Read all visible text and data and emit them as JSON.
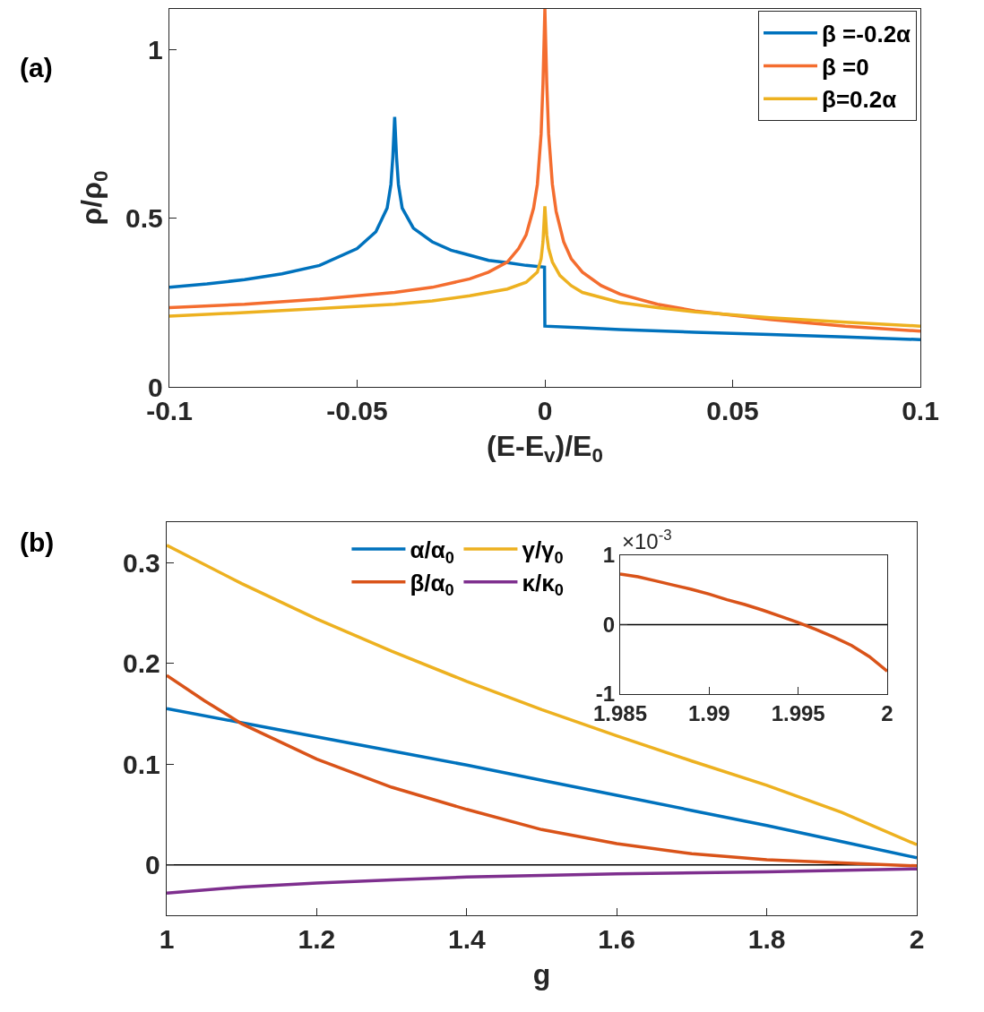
{
  "chart_data": [
    {
      "type": "line",
      "title": "(a)",
      "xlabel": "(E-E$_{v}$)/E$_{0}$",
      "ylabel": "ρ/ρ$_{0}$",
      "xlim": [
        -0.1,
        0.1
      ],
      "xticks": [
        -0.1,
        -0.05,
        0,
        0.05,
        0.1
      ],
      "ylim": [
        0,
        1.12
      ],
      "yticks": [
        0,
        0.5,
        1
      ],
      "legend": "top right",
      "series": [
        {
          "name": "β =-0.2α",
          "color": "#0072bd",
          "x": [
            -0.1,
            -0.09,
            -0.08,
            -0.07,
            -0.06,
            -0.05,
            -0.045,
            -0.042,
            -0.041,
            -0.0405,
            -0.04,
            -0.0395,
            -0.039,
            -0.038,
            -0.035,
            -0.03,
            -0.025,
            -0.02,
            -0.015,
            -0.01,
            -0.005,
            -0.0001,
            0,
            0.01,
            0.02,
            0.04,
            0.06,
            0.08,
            0.1
          ],
          "values": [
            0.295,
            0.305,
            0.318,
            0.335,
            0.36,
            0.41,
            0.46,
            0.53,
            0.6,
            0.68,
            0.8,
            0.68,
            0.6,
            0.53,
            0.47,
            0.43,
            0.405,
            0.39,
            0.375,
            0.368,
            0.36,
            0.355,
            0.18,
            0.175,
            0.17,
            0.162,
            0.155,
            0.148,
            0.14
          ]
        },
        {
          "name": "β =0",
          "color": "#f46d2f",
          "x": [
            -0.1,
            -0.08,
            -0.06,
            -0.04,
            -0.03,
            -0.02,
            -0.015,
            -0.01,
            -0.007,
            -0.005,
            -0.003,
            -0.002,
            -0.001,
            -0.0005,
            0,
            0.0005,
            0.001,
            0.002,
            0.003,
            0.005,
            0.007,
            0.01,
            0.015,
            0.02,
            0.03,
            0.04,
            0.06,
            0.08,
            0.1
          ],
          "values": [
            0.235,
            0.245,
            0.26,
            0.28,
            0.295,
            0.32,
            0.34,
            0.37,
            0.41,
            0.45,
            0.53,
            0.6,
            0.75,
            0.9,
            1.12,
            0.9,
            0.75,
            0.6,
            0.52,
            0.43,
            0.38,
            0.34,
            0.3,
            0.275,
            0.245,
            0.225,
            0.2,
            0.18,
            0.165
          ]
        },
        {
          "name": "β=0.2α",
          "color": "#edb120",
          "x": [
            -0.1,
            -0.08,
            -0.06,
            -0.04,
            -0.03,
            -0.02,
            -0.01,
            -0.005,
            -0.002,
            -0.001,
            -0.0005,
            0,
            0.0005,
            0.001,
            0.002,
            0.004,
            0.007,
            0.01,
            0.02,
            0.03,
            0.04,
            0.06,
            0.08,
            0.1
          ],
          "values": [
            0.21,
            0.22,
            0.232,
            0.245,
            0.255,
            0.27,
            0.29,
            0.31,
            0.34,
            0.38,
            0.43,
            0.535,
            0.45,
            0.41,
            0.37,
            0.33,
            0.3,
            0.28,
            0.25,
            0.235,
            0.222,
            0.205,
            0.192,
            0.18
          ]
        }
      ]
    },
    {
      "type": "line",
      "title": "(b)",
      "xlabel": "g",
      "xlim": [
        1,
        2
      ],
      "xticks": [
        1,
        1.2,
        1.4,
        1.6,
        1.8,
        2
      ],
      "ylim": [
        -0.05,
        0.34
      ],
      "yticks": [
        0,
        0.1,
        0.2,
        0.3
      ],
      "legend": "top",
      "ref_lines": [
        {
          "axis": "y",
          "value": 0,
          "color": "#000000"
        }
      ],
      "series": [
        {
          "name": "α/α$_{0}$",
          "color": "#0072bd",
          "x": [
            1,
            1.1,
            1.2,
            1.3,
            1.4,
            1.5,
            1.6,
            1.7,
            1.8,
            1.9,
            2
          ],
          "values": [
            0.155,
            0.141,
            0.127,
            0.113,
            0.099,
            0.084,
            0.069,
            0.054,
            0.039,
            0.023,
            0.007
          ]
        },
        {
          "name": "β/α$_{0}$",
          "color": "#d95319",
          "x": [
            1,
            1.05,
            1.1,
            1.2,
            1.3,
            1.4,
            1.5,
            1.6,
            1.7,
            1.8,
            1.9,
            2
          ],
          "values": [
            0.188,
            0.163,
            0.14,
            0.105,
            0.077,
            0.055,
            0.035,
            0.021,
            0.011,
            0.005,
            0.002,
            -0.001
          ]
        },
        {
          "name": "γ/γ$_{0}$",
          "color": "#edb120",
          "x": [
            1,
            1.1,
            1.2,
            1.3,
            1.4,
            1.5,
            1.6,
            1.7,
            1.8,
            1.9,
            2
          ],
          "values": [
            0.317,
            0.279,
            0.244,
            0.212,
            0.182,
            0.154,
            0.128,
            0.103,
            0.079,
            0.052,
            0.02
          ]
        },
        {
          "name": "κ/κ$_{0}$",
          "color": "#7e2f8e",
          "x": [
            1,
            1.1,
            1.2,
            1.3,
            1.4,
            1.6,
            1.8,
            2
          ],
          "values": [
            -0.028,
            -0.022,
            -0.018,
            -0.015,
            -0.012,
            -0.009,
            -0.007,
            -0.004
          ]
        }
      ]
    },
    {
      "type": "line",
      "xlim": [
        1.985,
        2
      ],
      "xticks": [
        1.985,
        1.99,
        1.995,
        2
      ],
      "ylim": [
        -1,
        1
      ],
      "yticks": [
        -1,
        0,
        1
      ],
      "annotations": [
        "×10$^{-3}$"
      ],
      "ref_lines": [
        {
          "axis": "y",
          "value": 0,
          "color": "#000000"
        }
      ],
      "series": [
        {
          "color": "#d95319",
          "x": [
            1.985,
            1.986,
            1.987,
            1.988,
            1.989,
            1.99,
            1.991,
            1.992,
            1.993,
            1.994,
            1.995,
            1.996,
            1.997,
            1.998,
            1.999,
            2
          ],
          "values": [
            0.73,
            0.69,
            0.63,
            0.57,
            0.51,
            0.44,
            0.36,
            0.29,
            0.21,
            0.12,
            0.03,
            -0.07,
            -0.18,
            -0.3,
            -0.46,
            -0.67
          ]
        }
      ]
    }
  ]
}
